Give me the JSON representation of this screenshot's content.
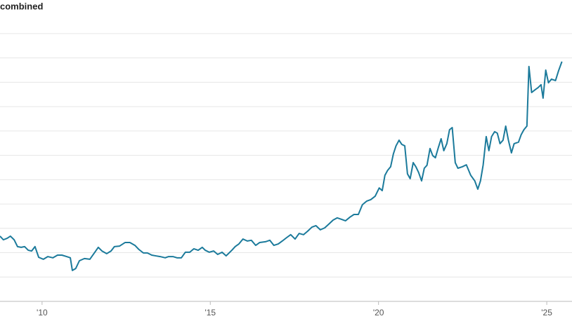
{
  "chart_data": {
    "type": "line",
    "title": "combined",
    "x": [
      2008.75,
      2008.85,
      2008.96,
      2009.06,
      2009.17,
      2009.27,
      2009.38,
      2009.48,
      2009.59,
      2009.69,
      2009.79,
      2009.9,
      2010.04,
      2010.17,
      2010.32,
      2010.46,
      2010.59,
      2010.73,
      2010.84,
      2010.9,
      2011.0,
      2011.11,
      2011.26,
      2011.42,
      2011.57,
      2011.67,
      2011.78,
      2011.92,
      2012.05,
      2012.15,
      2012.3,
      2012.47,
      2012.61,
      2012.76,
      2012.88,
      2013.01,
      2013.13,
      2013.26,
      2013.38,
      2013.51,
      2013.66,
      2013.76,
      2013.89,
      2014.01,
      2014.14,
      2014.26,
      2014.39,
      2014.51,
      2014.64,
      2014.76,
      2014.85,
      2014.97,
      2015.1,
      2015.22,
      2015.35,
      2015.47,
      2015.64,
      2015.74,
      2015.85,
      2015.97,
      2016.1,
      2016.22,
      2016.35,
      2016.47,
      2016.64,
      2016.77,
      2016.89,
      2017.02,
      2017.14,
      2017.27,
      2017.39,
      2017.52,
      2017.64,
      2017.77,
      2017.89,
      2018.02,
      2018.14,
      2018.27,
      2018.4,
      2018.52,
      2018.65,
      2018.77,
      2018.9,
      2019.02,
      2019.15,
      2019.27,
      2019.4,
      2019.52,
      2019.65,
      2019.77,
      2019.9,
      2020.02,
      2020.11,
      2020.19,
      2020.27,
      2020.36,
      2020.44,
      2020.52,
      2020.61,
      2020.69,
      2020.78,
      2020.86,
      2020.94,
      2021.03,
      2021.11,
      2021.19,
      2021.28,
      2021.36,
      2021.44,
      2021.53,
      2021.61,
      2021.69,
      2021.78,
      2021.86,
      2021.94,
      2022.03,
      2022.11,
      2022.19,
      2022.28,
      2022.36,
      2022.49,
      2022.61,
      2022.74,
      2022.86,
      2022.95,
      2023.03,
      2023.11,
      2023.2,
      2023.28,
      2023.36,
      2023.45,
      2023.53,
      2023.61,
      2023.7,
      2023.78,
      2023.86,
      2023.95,
      2024.03,
      2024.16,
      2024.24,
      2024.32,
      2024.41,
      2024.47,
      2024.55,
      2024.66,
      2024.74,
      2024.83,
      2024.89,
      2024.97,
      2025.05,
      2025.14,
      2025.26,
      2025.35,
      2025.45
    ],
    "values": [
      2.68,
      2.53,
      2.59,
      2.68,
      2.53,
      2.25,
      2.22,
      2.25,
      2.1,
      2.07,
      2.25,
      1.81,
      1.73,
      1.84,
      1.79,
      1.9,
      1.9,
      1.84,
      1.79,
      1.27,
      1.35,
      1.67,
      1.76,
      1.73,
      2.02,
      2.22,
      2.07,
      1.96,
      2.07,
      2.25,
      2.27,
      2.42,
      2.42,
      2.3,
      2.13,
      1.99,
      1.99,
      1.9,
      1.87,
      1.84,
      1.79,
      1.84,
      1.84,
      1.79,
      1.79,
      2.02,
      2.02,
      2.16,
      2.1,
      2.22,
      2.1,
      2.02,
      2.07,
      1.93,
      2.02,
      1.87,
      2.1,
      2.25,
      2.36,
      2.56,
      2.48,
      2.51,
      2.3,
      2.42,
      2.45,
      2.51,
      2.3,
      2.36,
      2.48,
      2.62,
      2.74,
      2.56,
      2.79,
      2.74,
      2.88,
      3.05,
      3.11,
      2.94,
      3.02,
      3.17,
      3.34,
      3.43,
      3.37,
      3.31,
      3.46,
      3.57,
      3.57,
      3.97,
      4.12,
      4.18,
      4.32,
      4.66,
      4.55,
      5.18,
      5.38,
      5.53,
      6.05,
      6.39,
      6.62,
      6.45,
      6.39,
      5.24,
      5.04,
      5.7,
      5.53,
      5.3,
      4.95,
      5.47,
      5.59,
      6.28,
      5.99,
      5.9,
      6.33,
      6.68,
      6.19,
      6.48,
      7.05,
      7.14,
      5.7,
      5.47,
      5.53,
      5.61,
      5.18,
      4.95,
      4.61,
      4.95,
      5.61,
      6.77,
      6.19,
      6.77,
      6.97,
      6.91,
      6.48,
      6.62,
      7.2,
      6.62,
      6.1,
      6.48,
      6.54,
      6.85,
      7.05,
      7.2,
      9.65,
      8.58,
      8.7,
      8.78,
      8.9,
      8.35,
      9.5,
      8.98,
      9.13,
      9.07,
      9.47,
      9.85
    ],
    "color": "#1b7a9b",
    "xlim": [
      2008.75,
      2025.75
    ],
    "xticks": [
      {
        "value": 2010,
        "label": "'10"
      },
      {
        "value": 2015,
        "label": "'15"
      },
      {
        "value": 2020,
        "label": "'20"
      },
      {
        "value": 2025,
        "label": "'25"
      }
    ],
    "ylim": [
      0,
      12.38
    ],
    "ygrid": [
      1,
      2,
      3,
      4,
      5,
      6,
      7,
      8,
      9,
      10,
      11
    ],
    "grid": true
  }
}
